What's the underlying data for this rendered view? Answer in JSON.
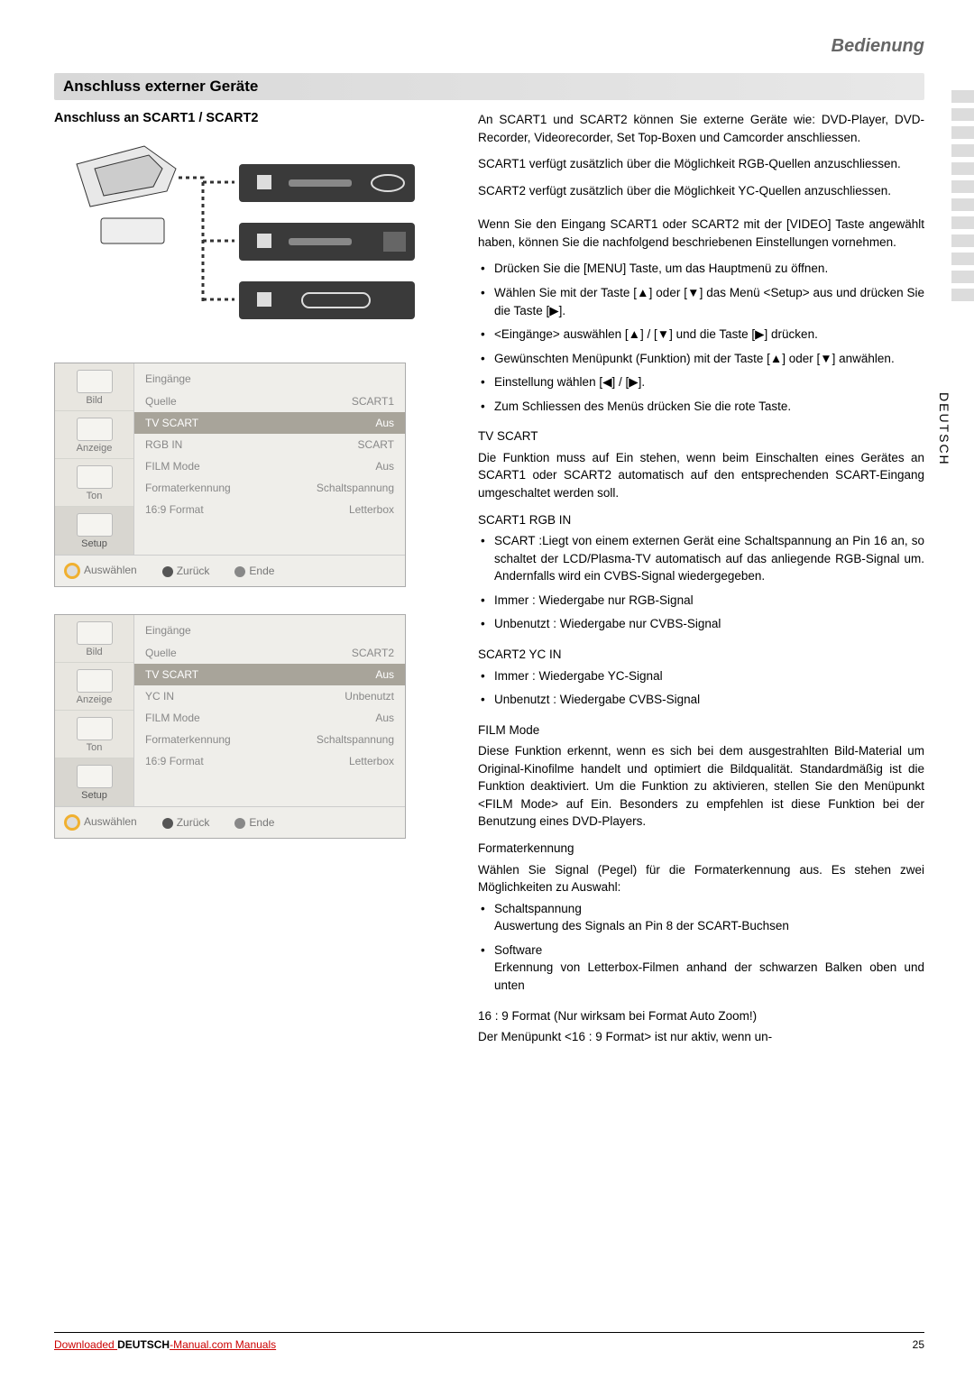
{
  "header": {
    "title": "Bedienung"
  },
  "section": {
    "title": "Anschluss externer Geräte"
  },
  "subhead": "Anschluss an SCART1 / SCART2",
  "side_lang": "DEUTSCH",
  "menu_common": {
    "sidebar": [
      "Bild",
      "Anzeige",
      "Ton",
      "Setup"
    ],
    "title": "Eingänge",
    "footer": {
      "select": "Auswählen",
      "back": "Zurück",
      "end": "Ende"
    }
  },
  "menu1": {
    "rows": [
      {
        "l": "Quelle",
        "r": "SCART1",
        "hl": false
      },
      {
        "l": "TV SCART",
        "r": "Aus",
        "hl": true
      },
      {
        "l": "RGB IN",
        "r": "SCART",
        "hl": false
      },
      {
        "l": "FILM Mode",
        "r": "Aus",
        "hl": false
      },
      {
        "l": "Formaterkennung",
        "r": "Schaltspannung",
        "hl": false
      },
      {
        "l": "16:9 Format",
        "r": "Letterbox",
        "hl": false
      }
    ]
  },
  "menu2": {
    "rows": [
      {
        "l": "Quelle",
        "r": "SCART2",
        "hl": false
      },
      {
        "l": "TV SCART",
        "r": "Aus",
        "hl": true
      },
      {
        "l": "YC IN",
        "r": "Unbenutzt",
        "hl": false
      },
      {
        "l": "FILM Mode",
        "r": "Aus",
        "hl": false
      },
      {
        "l": "Formaterkennung",
        "r": "Schaltspannung",
        "hl": false
      },
      {
        "l": "16:9 Format",
        "r": "Letterbox",
        "hl": false
      }
    ]
  },
  "body": {
    "p1": "An SCART1 und SCART2 können Sie externe Geräte wie: DVD-Player, DVD-Recorder, Videorecorder, Set Top-Boxen und Camcorder anschliessen.",
    "p2": "SCART1 verfügt zusätzlich über die Möglichkeit RGB-Quellen anzuschliessen.",
    "p3": "SCART2 verfügt zusätzlich über die Möglichkeit YC-Quellen anzuschliessen.",
    "p4": "Wenn Sie den Eingang SCART1 oder SCART2 mit der [VIDEO] Taste angewählt haben, können Sie die nachfolgend beschriebenen Einstellungen vornehmen.",
    "steps": [
      "Drücken Sie die [MENU] Taste, um das Hauptmenü zu öffnen.",
      "Wählen Sie mit der Taste [▲] oder [▼] das Menü <Setup> aus und drücken Sie die Taste [▶].",
      "<Eingänge> auswählen [▲] / [▼] und die Taste [▶] drücken.",
      "Gewünschten Menüpunkt (Funktion) mit der Taste [▲] oder [▼] anwählen.",
      "Einstellung wählen [◀] / [▶].",
      "Zum Schliessen des Menüs drücken Sie die rote Taste."
    ],
    "tvscart_t": "TV SCART",
    "tvscart": "Die Funktion muss auf Ein stehen, wenn beim Einschalten eines Gerätes an SCART1 oder SCART2 automatisch auf den entsprechenden SCART-Eingang umgeschaltet werden soll.",
    "rgb_t": "SCART1 RGB IN",
    "rgb": [
      "SCART :Liegt von einem externen Gerät eine Schaltspannung an Pin 16 an, so schaltet der LCD/Plasma-TV automatisch auf das anliegende RGB-Signal um. Andernfalls wird ein CVBS-Signal wiedergegeben.",
      "Immer : Wiedergabe nur RGB-Signal",
      "Unbenutzt : Wiedergabe nur CVBS-Signal"
    ],
    "yc_t": "SCART2 YC IN",
    "yc": [
      "Immer : Wiedergabe YC-Signal",
      "Unbenutzt : Wiedergabe CVBS-Signal"
    ],
    "film_t": "FILM Mode",
    "film": "Diese Funktion erkennt, wenn es sich bei dem ausgestrahlten Bild-Material um Original-Kinofilme handelt und optimiert die Bildqualität. Standardmäßig ist die Funktion deaktiviert. Um die Funktion zu aktivieren, stellen Sie den Menüpunkt <FILM Mode> auf Ein. Besonders zu empfehlen ist diese Funktion bei der Benutzung eines DVD-Players.",
    "format_t": "Formaterkennung",
    "format_p": "Wählen Sie Signal (Pegel) für die Formaterkennung aus. Es stehen zwei Möglichkeiten zu Auswahl:",
    "format": [
      "Schaltspannung\nAuswertung des Signals an Pin 8 der SCART-Buchsen",
      "Software\nErkennung von Letterbox-Filmen anhand der schwarzen Balken oben und unten"
    ],
    "f169_t": "16 : 9 Format (Nur wirksam bei Format Auto Zoom!)",
    "f169": "Der Menüpunkt <16 : 9 Format> ist nur aktiv, wenn un-"
  },
  "footer": {
    "left_pre": "Downloaded ",
    "left_mid": "DEUTSCH",
    "left_post": "-Manual.com Manuals",
    "page": "25"
  }
}
